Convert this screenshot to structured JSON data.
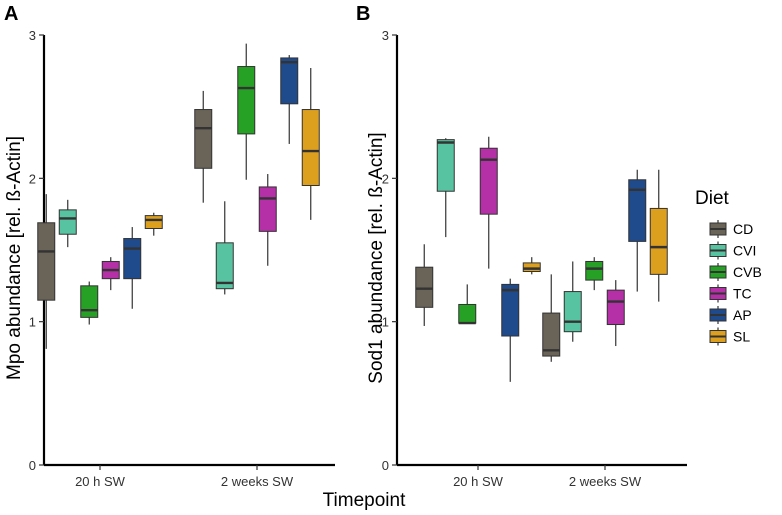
{
  "chart_data": [
    {
      "type": "boxplot",
      "panel_label": "A",
      "ylabel": "Mpo abundance [rel. ß-Actin]",
      "ylim": [
        0,
        3
      ],
      "yticks": [
        "0",
        "1",
        "2",
        "3"
      ],
      "categories": [
        "20 h SW",
        "2 weeks SW"
      ],
      "series": [
        {
          "name": "CD",
          "boxes": [
            {
              "min": 0.81,
              "q1": 1.15,
              "median": 1.49,
              "q3": 1.69,
              "max": 1.89
            },
            {
              "min": 1.83,
              "q1": 2.07,
              "median": 2.35,
              "q3": 2.48,
              "max": 2.61
            }
          ]
        },
        {
          "name": "CVI",
          "boxes": [
            {
              "min": 1.52,
              "q1": 1.61,
              "median": 1.72,
              "q3": 1.78,
              "max": 1.85
            },
            {
              "min": 1.19,
              "q1": 1.23,
              "median": 1.27,
              "q3": 1.55,
              "max": 1.84
            }
          ]
        },
        {
          "name": "CVB",
          "boxes": [
            {
              "min": 0.98,
              "q1": 1.03,
              "median": 1.08,
              "q3": 1.25,
              "max": 1.28
            },
            {
              "min": 1.99,
              "q1": 2.31,
              "median": 2.63,
              "q3": 2.78,
              "max": 2.94
            }
          ]
        },
        {
          "name": "TC",
          "boxes": [
            {
              "min": 1.22,
              "q1": 1.3,
              "median": 1.36,
              "q3": 1.42,
              "max": 1.45
            },
            {
              "min": 1.39,
              "q1": 1.63,
              "median": 1.86,
              "q3": 1.94,
              "max": 2.03
            }
          ]
        },
        {
          "name": "AP",
          "boxes": [
            {
              "min": 1.09,
              "q1": 1.3,
              "median": 1.51,
              "q3": 1.58,
              "max": 1.66
            },
            {
              "min": 2.24,
              "q1": 2.52,
              "median": 2.81,
              "q3": 2.84,
              "max": 2.86
            }
          ]
        },
        {
          "name": "SL",
          "boxes": [
            {
              "min": 1.6,
              "q1": 1.65,
              "median": 1.71,
              "q3": 1.74,
              "max": 1.76
            },
            {
              "min": 1.71,
              "q1": 1.95,
              "median": 2.19,
              "q3": 2.48,
              "max": 2.77
            }
          ]
        }
      ]
    },
    {
      "type": "boxplot",
      "panel_label": "B",
      "ylabel": "Sod1 abundance [rel. ß-Actin]",
      "ylim": [
        0,
        3
      ],
      "yticks": [
        "0",
        "1",
        "2",
        "3"
      ],
      "categories": [
        "20 h SW",
        "2 weeks SW"
      ],
      "series": [
        {
          "name": "CD",
          "boxes": [
            {
              "min": 0.97,
              "q1": 1.1,
              "median": 1.23,
              "q3": 1.38,
              "max": 1.54
            },
            {
              "min": 0.72,
              "q1": 0.76,
              "median": 0.8,
              "q3": 1.06,
              "max": 1.33
            }
          ]
        },
        {
          "name": "CVI",
          "boxes": [
            {
              "min": 1.59,
              "q1": 1.91,
              "median": 2.25,
              "q3": 2.27,
              "max": 2.28
            },
            {
              "min": 0.86,
              "q1": 0.93,
              "median": 1.0,
              "q3": 1.21,
              "max": 1.42
            }
          ]
        },
        {
          "name": "CVB",
          "boxes": [
            {
              "min": 0.99,
              "q1": 0.99,
              "median": 0.99,
              "q3": 1.12,
              "max": 1.26
            },
            {
              "min": 1.22,
              "q1": 1.29,
              "median": 1.37,
              "q3": 1.42,
              "max": 1.45
            }
          ]
        },
        {
          "name": "TC",
          "boxes": [
            {
              "min": 1.37,
              "q1": 1.75,
              "median": 2.13,
              "q3": 2.21,
              "max": 2.29
            },
            {
              "min": 0.83,
              "q1": 0.98,
              "median": 1.14,
              "q3": 1.22,
              "max": 1.29
            }
          ]
        },
        {
          "name": "AP",
          "boxes": [
            {
              "min": 0.58,
              "q1": 0.9,
              "median": 1.22,
              "q3": 1.26,
              "max": 1.3
            },
            {
              "min": 1.21,
              "q1": 1.56,
              "median": 1.92,
              "q3": 1.99,
              "max": 2.06
            }
          ]
        },
        {
          "name": "SL",
          "boxes": [
            {
              "min": 1.33,
              "q1": 1.35,
              "median": 1.37,
              "q3": 1.41,
              "max": 1.45
            },
            {
              "min": 1.14,
              "q1": 1.33,
              "median": 1.52,
              "q3": 1.79,
              "max": 2.06
            }
          ]
        }
      ]
    }
  ],
  "shared": {
    "xlabel": "Timepoint",
    "legend": {
      "title": "Diet",
      "items": [
        {
          "name": "CD",
          "color": "#6a6357"
        },
        {
          "name": "CVI",
          "color": "#58c3a1"
        },
        {
          "name": "CVB",
          "color": "#26a025"
        },
        {
          "name": "TC",
          "color": "#b530a6"
        },
        {
          "name": "AP",
          "color": "#1f4a8c"
        },
        {
          "name": "SL",
          "color": "#dc9f1e"
        }
      ]
    }
  }
}
